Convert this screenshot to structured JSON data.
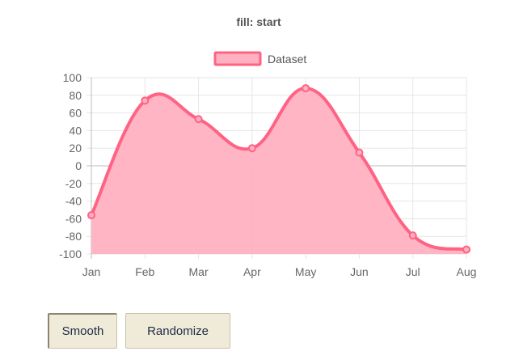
{
  "chart_data": {
    "type": "area",
    "title": "fill: start",
    "categories": [
      "Jan",
      "Feb",
      "Mar",
      "Apr",
      "May",
      "Jun",
      "Jul",
      "Aug"
    ],
    "series": [
      {
        "name": "Dataset",
        "values": [
          -56,
          74,
          53,
          20,
          88,
          15,
          -79,
          -95
        ]
      }
    ],
    "ylim": [
      -100,
      100
    ],
    "yticks": [
      "100",
      "80",
      "60",
      "40",
      "20",
      "0",
      "-20",
      "-40",
      "-60",
      "-80",
      "-100"
    ],
    "grid": true,
    "smooth": true,
    "fill": "start",
    "legend": "top",
    "colors": {
      "line": "#ff6384",
      "fill": "#ffb1c1"
    }
  },
  "buttons": {
    "smooth_label": "Smooth",
    "randomize_label": "Randomize"
  }
}
